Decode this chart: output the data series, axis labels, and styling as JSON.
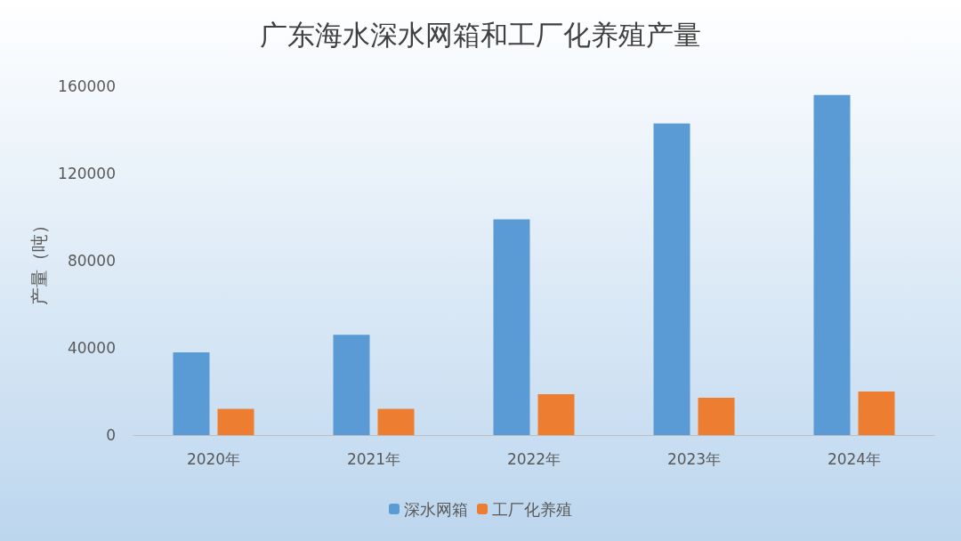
{
  "chart_data": {
    "type": "bar",
    "title": "广东海水深水网箱和工厂化养殖产量",
    "ylabel": "产量（吨）",
    "categories": [
      "2020年",
      "2021年",
      "2022年",
      "2023年",
      "2024年"
    ],
    "series": [
      {
        "name": "深水网箱",
        "color": "#5b9bd5",
        "values": [
          38000,
          46000,
          99000,
          143000,
          156000
        ]
      },
      {
        "name": "工厂化养殖",
        "color": "#ed7d31",
        "values": [
          12000,
          12000,
          18800,
          17100,
          20000
        ]
      }
    ],
    "ylim": [
      0,
      160000
    ],
    "yticks": [
      0,
      40000,
      80000,
      120000,
      160000
    ],
    "grid": false,
    "legend": "bottom"
  }
}
